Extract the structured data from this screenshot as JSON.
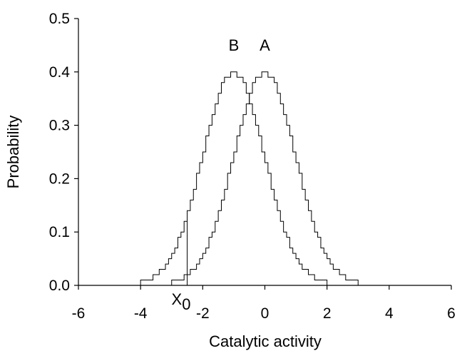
{
  "chart_data": {
    "type": "line",
    "title": "",
    "xlabel": "Catalytic activity",
    "ylabel": "Probability",
    "xlim": [
      -6,
      6
    ],
    "ylim": [
      0,
      0.5
    ],
    "grid": false,
    "legend": "none",
    "x_ticks": [
      "-6",
      "-4",
      "-2",
      "0",
      "2",
      "4",
      "6"
    ],
    "y_ticks": [
      "0.0",
      "0.1",
      "0.2",
      "0.3",
      "0.4",
      "0.5"
    ],
    "series": [
      {
        "name": "A",
        "mean": 0,
        "std": 1,
        "support": [
          -3,
          3
        ],
        "style": "stepped"
      },
      {
        "name": "B",
        "mean": -1,
        "std": 1,
        "support": [
          -4,
          2
        ],
        "style": "stepped"
      }
    ],
    "annotations": [
      {
        "text": "X",
        "subscript": "0",
        "x": -2.5,
        "marker_height": 0.12
      }
    ]
  }
}
